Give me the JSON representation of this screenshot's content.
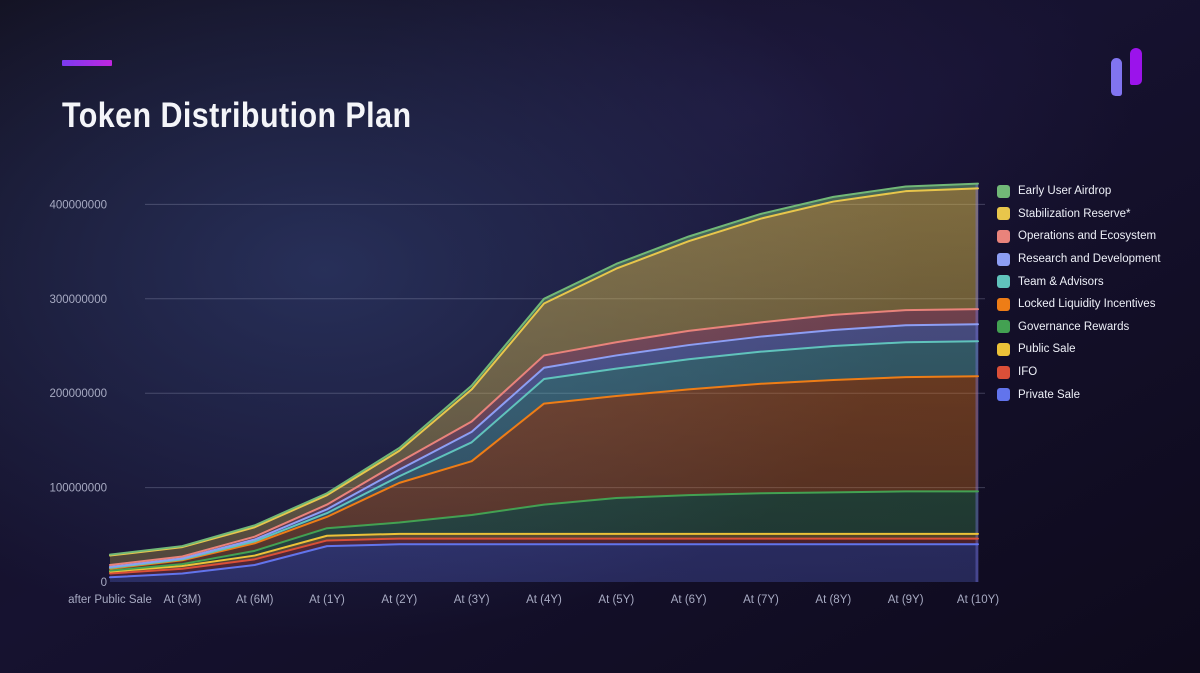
{
  "header": {
    "title": "Token Distribution Plan"
  },
  "brand": {
    "accent_gradient": [
      "#7a3bf0",
      "#c026e0"
    ],
    "logo_colors": {
      "left_bar": "#8174f0",
      "right_bar": "#9b13eb"
    }
  },
  "chart_data": {
    "type": "area",
    "stacked": true,
    "title": "Token Distribution Plan",
    "xlabel": "",
    "ylabel": "",
    "grid": true,
    "legend_position": "right",
    "x_categories": [
      "after Public Sale",
      "At (3M)",
      "At (6M)",
      "At (1Y)",
      "At (2Y)",
      "At (3Y)",
      "At (4Y)",
      "At (5Y)",
      "At (6Y)",
      "At (7Y)",
      "At (8Y)",
      "At (9Y)",
      "At (10Y)"
    ],
    "y_axis": {
      "tick_values": [
        0,
        100000000,
        200000000,
        300000000,
        400000000
      ],
      "tick_labels": [
        "0",
        "100000000",
        "200000000",
        "300000000",
        "400000000"
      ],
      "range": [
        0,
        420000000
      ]
    },
    "values_scale": 1000000,
    "stacking_note": "series listed in legend order, top of stack first; reverse list for bottom-up stacking",
    "series": [
      {
        "name": "Early User Airdrop",
        "color": "#71b877",
        "values_millions": [
          1,
          1,
          2,
          2,
          3,
          4,
          5,
          5,
          5,
          5,
          5,
          5,
          5
        ]
      },
      {
        "name": "Stabilization Reserve*",
        "color": "#e8c64b",
        "values_millions": [
          10,
          10,
          10,
          10,
          12,
          34,
          55,
          78,
          95,
          110,
          120,
          126,
          128
        ]
      },
      {
        "name": "Operations and Ecosystem",
        "color": "#e9837b",
        "values_millions": [
          2,
          2,
          3,
          5,
          8,
          11,
          13,
          14,
          15,
          15,
          16,
          16,
          16
        ]
      },
      {
        "name": "Research and Development",
        "color": "#8d9ef4",
        "values_millions": [
          1,
          1,
          2,
          4,
          7,
          11,
          12,
          14,
          15,
          16,
          17,
          18,
          18
        ]
      },
      {
        "name": "Team & Advisors",
        "color": "#60c3bc",
        "values_millions": [
          1,
          1,
          2,
          4,
          7,
          20,
          26,
          29,
          32,
          34,
          36,
          37,
          37
        ]
      },
      {
        "name": "Locked Liquidity Incentives",
        "color": "#ee7d16",
        "values_millions": [
          2,
          4,
          8,
          12,
          42,
          57,
          107,
          108,
          112,
          116,
          119,
          121,
          122
        ]
      },
      {
        "name": "Governance Rewards",
        "color": "#43a152",
        "values_millions": [
          1,
          2,
          5,
          8,
          12,
          20,
          31,
          38,
          41,
          43,
          44,
          45,
          45
        ]
      },
      {
        "name": "Public Sale",
        "color": "#ecc238",
        "values_millions": [
          2,
          3,
          4,
          5,
          5,
          5,
          5,
          5,
          5,
          5,
          5,
          5,
          5
        ]
      },
      {
        "name": "IFO",
        "color": "#db4f38",
        "values_millions": [
          4,
          5,
          6,
          6,
          6,
          6,
          6,
          6,
          6,
          6,
          6,
          6,
          6
        ]
      },
      {
        "name": "Private Sale",
        "color": "#6274ec",
        "values_millions": [
          5,
          9,
          18,
          38,
          40,
          40,
          40,
          40,
          40,
          40,
          40,
          40,
          40
        ]
      }
    ]
  }
}
